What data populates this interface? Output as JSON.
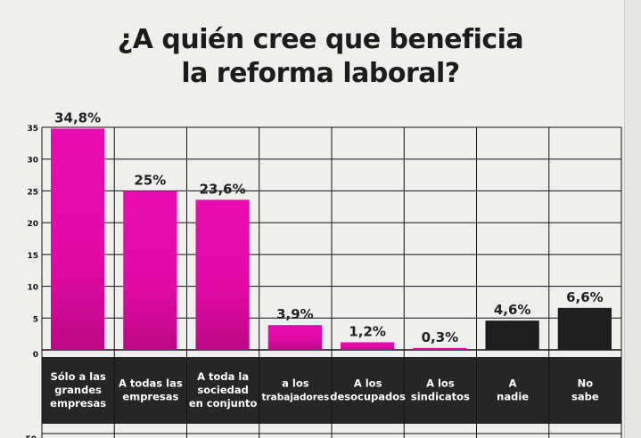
{
  "chart_data": {
    "type": "bar",
    "title": "¿A quién cree que beneficia la reforma laboral?",
    "title_lines": [
      "¿A quién cree que beneficia",
      "la reforma laboral?"
    ],
    "categories": [
      [
        "Sólo a las",
        "grandes",
        "empresas"
      ],
      [
        "A todas las",
        "empresas"
      ],
      [
        "A toda la",
        "sociedad",
        "en conjunto"
      ],
      [
        "a los",
        "trabajadores"
      ],
      [
        "A los",
        "desocupados"
      ],
      [
        "A los",
        "sindicatos"
      ],
      [
        "A",
        "nadie"
      ],
      [
        "No",
        "sabe"
      ]
    ],
    "values": [
      34.8,
      25,
      23.6,
      3.9,
      1.2,
      0.3,
      4.6,
      6.6
    ],
    "data_labels": [
      "34,8%",
      "25%",
      "23,6%",
      "3,9%",
      "1,2%",
      "0,3%",
      "4,6%",
      "6,6%"
    ],
    "bar_colors": [
      "#e20ca8",
      "#e20ca8",
      "#e20ca8",
      "#e20ca8",
      "#e20ca8",
      "#e20ca8",
      "#1e1e1e",
      "#1e1e1e"
    ],
    "yticks": [
      0,
      5,
      10,
      15,
      20,
      25,
      30,
      35
    ],
    "ylim": [
      0,
      35
    ],
    "grid": true,
    "xlabel": "",
    "ylabel": "",
    "label_band_color": "#262626",
    "partial_tick_below": "50"
  }
}
